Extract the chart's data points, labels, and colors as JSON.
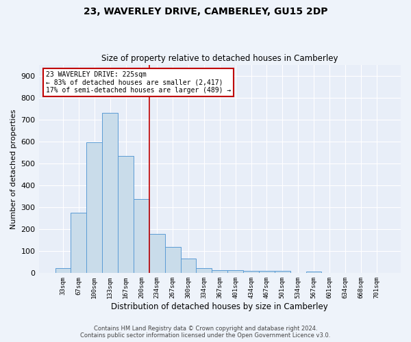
{
  "title": "23, WAVERLEY DRIVE, CAMBERLEY, GU15 2DP",
  "subtitle": "Size of property relative to detached houses in Camberley",
  "xlabel": "Distribution of detached houses by size in Camberley",
  "ylabel": "Number of detached properties",
  "bar_labels": [
    "33sqm",
    "67sqm",
    "100sqm",
    "133sqm",
    "167sqm",
    "200sqm",
    "234sqm",
    "267sqm",
    "300sqm",
    "334sqm",
    "367sqm",
    "401sqm",
    "434sqm",
    "467sqm",
    "501sqm",
    "534sqm",
    "567sqm",
    "601sqm",
    "634sqm",
    "668sqm",
    "701sqm"
  ],
  "bar_values": [
    22,
    275,
    595,
    730,
    535,
    338,
    178,
    118,
    68,
    22,
    13,
    13,
    10,
    9,
    9,
    0,
    8,
    0,
    0,
    0,
    0
  ],
  "bar_color": "#c9dcea",
  "bar_edge_color": "#5b9bd5",
  "vline_x_idx": 5.5,
  "vline_color": "#c00000",
  "annotation_title": "23 WAVERLEY DRIVE: 225sqm",
  "annotation_line1": "← 83% of detached houses are smaller (2,417)",
  "annotation_line2": "17% of semi-detached houses are larger (489) →",
  "annotation_box_color": "#c00000",
  "ylim": [
    0,
    950
  ],
  "yticks": [
    0,
    100,
    200,
    300,
    400,
    500,
    600,
    700,
    800,
    900
  ],
  "footer_line1": "Contains HM Land Registry data © Crown copyright and database right 2024.",
  "footer_line2": "Contains public sector information licensed under the Open Government Licence v3.0.",
  "bg_color": "#eef3fa",
  "plot_bg_color": "#e8eef8",
  "grid_color": "#ffffff",
  "title_fontsize": 10,
  "subtitle_fontsize": 8.5
}
